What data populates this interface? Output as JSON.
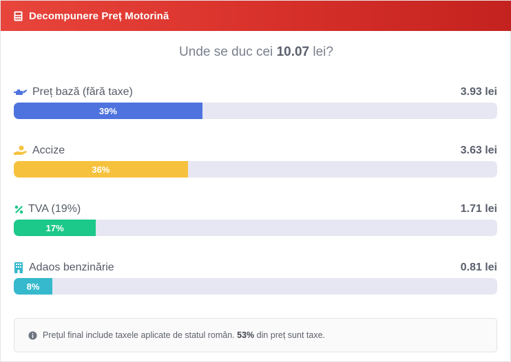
{
  "header": {
    "title": "Decompunere Preț Motorină",
    "icon": "calculator-icon"
  },
  "headline": {
    "prefix": "Unde se duc cei",
    "total": "10.07",
    "suffix": "lei?"
  },
  "breakdown": [
    {
      "icon": "oil-can-icon",
      "label": "Preț bază (fără taxe)",
      "amount": "3.93 lei",
      "percent": 39,
      "percent_label": "39%",
      "color": "#4e73df"
    },
    {
      "icon": "hand-holding-dollar-icon",
      "label": "Accize",
      "amount": "3.63 lei",
      "percent": 36,
      "percent_label": "36%",
      "color": "#f6c23e"
    },
    {
      "icon": "percent-icon",
      "label": "TVA (19%)",
      "amount": "1.71 lei",
      "percent": 17,
      "percent_label": "17%",
      "color": "#1cc88a"
    },
    {
      "icon": "building-icon",
      "label": "Adaos benzinărie",
      "amount": "0.81 lei",
      "percent": 8,
      "percent_label": "8%",
      "color": "#36b9cc"
    }
  ],
  "note": {
    "icon": "info-circle-icon",
    "text_before": "Prețul final include taxele aplicate de statul român.",
    "tax_share": "53%",
    "text_after": "din preț sunt taxe."
  }
}
